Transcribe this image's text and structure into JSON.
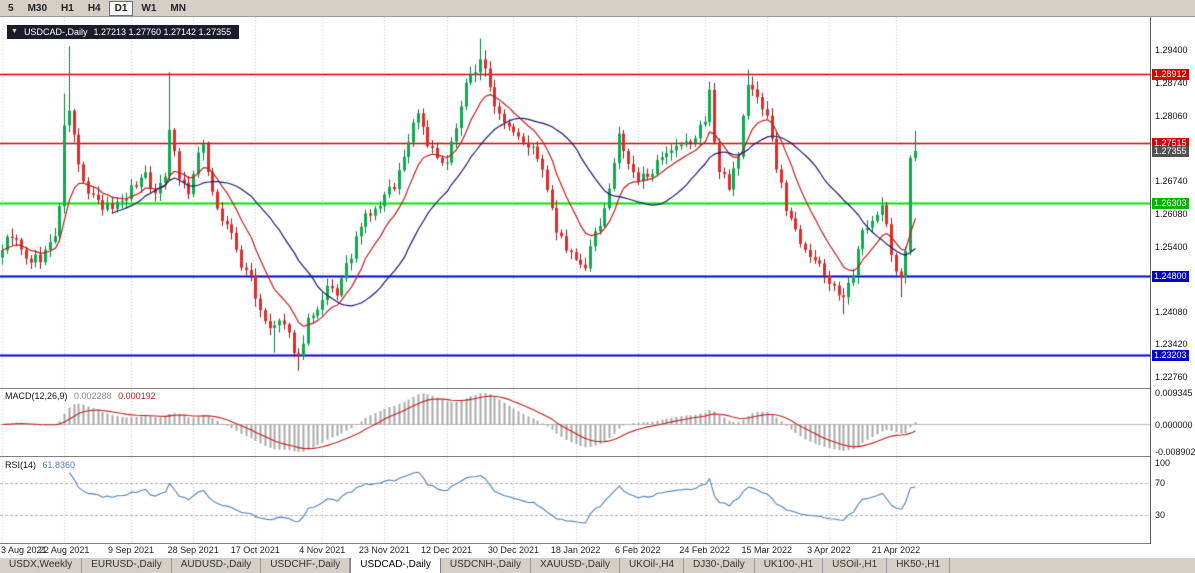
{
  "toolbar": {
    "timeframes": [
      "5",
      "M30",
      "H1",
      "H4",
      "D1",
      "W1",
      "MN"
    ],
    "active": "D1"
  },
  "chart_title": {
    "menu_icon": "▼",
    "symbol": "USDCAD-,Daily",
    "ohlc": "1.27213 1.27760 1.27142 1.27355"
  },
  "indicators": {
    "macd": {
      "name": "MACD(12,26,9)",
      "value1": "0.002288",
      "value2": "0.000192",
      "axis_ticks": [
        "0.009345",
        "0.000000",
        "-0.008902"
      ]
    },
    "rsi": {
      "name": "RSI(14)",
      "value": "61.8360",
      "axis_ticks": [
        "100",
        "70",
        "30"
      ],
      "levels": [
        70,
        30
      ]
    }
  },
  "colors": {
    "up_fill": "#0fa94f",
    "up_stroke": "#067f38",
    "down_fill": "#dd2c2c",
    "down_stroke": "#a01818",
    "ma_fast": "#c22020",
    "ma_slow": "#1b1b70",
    "grid": "#cccccc",
    "level_red": "#d40000",
    "level_green": "#00e000",
    "level_blue": "#0000d4",
    "label_red": "#d40000",
    "label_green": "#00b400",
    "label_blue": "#0000c8",
    "label_current": "#505050",
    "macd_bar": "#a8a8a8",
    "macd_signal": "#c02020",
    "macd_zero": "#bbbbbb",
    "rsi_line": "#4f81bd",
    "rsi_level": "#b4b4b4"
  },
  "chart_data": {
    "type": "candlestick",
    "symbol": "USDCAD",
    "timeframe": "Daily",
    "last_ohlc": {
      "open": 1.27213,
      "high": 1.2776,
      "low": 1.27142,
      "close": 1.27355
    },
    "current_price": 1.27355,
    "price_axis": {
      "min": 1.2253,
      "max": 1.3008,
      "ticks": [
        "1.29400",
        "1.28740",
        "1.28060",
        "1.26740",
        "1.26080",
        "1.25400",
        "1.24080",
        "1.23420",
        "1.22760"
      ]
    },
    "levels": [
      {
        "value": 1.28912,
        "color": "red"
      },
      {
        "value": 1.27515,
        "color": "red"
      },
      {
        "value": 1.26303,
        "color": "green"
      },
      {
        "value": 1.248,
        "color": "blue"
      },
      {
        "value": 1.23203,
        "color": "blue"
      }
    ],
    "num_candles": 192,
    "anchors": [
      [
        0,
        1.254
      ],
      [
        2,
        1.2566
      ],
      [
        5,
        1.2512
      ],
      [
        8,
        1.2517
      ],
      [
        11,
        1.256
      ],
      [
        12,
        1.2628
      ],
      [
        13,
        1.2778
      ],
      [
        14,
        1.2822
      ],
      [
        16,
        1.2705
      ],
      [
        18,
        1.2648
      ],
      [
        21,
        1.2617
      ],
      [
        24,
        1.2628
      ],
      [
        27,
        1.2657
      ],
      [
        30,
        1.2692
      ],
      [
        32,
        1.2642
      ],
      [
        34,
        1.269
      ],
      [
        35,
        1.2788
      ],
      [
        37,
        1.2682
      ],
      [
        39,
        1.2652
      ],
      [
        41,
        1.2722
      ],
      [
        42,
        1.2748
      ],
      [
        44,
        1.2652
      ],
      [
        46,
        1.2592
      ],
      [
        48,
        1.2567
      ],
      [
        50,
        1.2497
      ],
      [
        52,
        1.2482
      ],
      [
        54,
        1.2402
      ],
      [
        56,
        1.2372
      ],
      [
        58,
        1.2387
      ],
      [
        60,
        1.2357
      ],
      [
        62,
        1.2312
      ],
      [
        64,
        1.2392
      ],
      [
        66,
        1.2402
      ],
      [
        68,
        1.2452
      ],
      [
        70,
        1.2447
      ],
      [
        72,
        1.2497
      ],
      [
        74,
        1.2552
      ],
      [
        76,
        1.2602
      ],
      [
        78,
        1.2612
      ],
      [
        80,
        1.2642
      ],
      [
        82,
        1.2667
      ],
      [
        84,
        1.2722
      ],
      [
        86,
        1.2792
      ],
      [
        87,
        1.2817
      ],
      [
        89,
        1.2752
      ],
      [
        91,
        1.2717
      ],
      [
        93,
        1.2702
      ],
      [
        95,
        1.2792
      ],
      [
        97,
        1.2872
      ],
      [
        99,
        1.2902
      ],
      [
        100,
        1.2927
      ],
      [
        102,
        1.2862
      ],
      [
        104,
        1.2812
      ],
      [
        106,
        1.2792
      ],
      [
        108,
        1.2772
      ],
      [
        110,
        1.2747
      ],
      [
        112,
        1.2727
      ],
      [
        114,
        1.2652
      ],
      [
        116,
        1.2572
      ],
      [
        118,
        1.2532
      ],
      [
        120,
        1.2507
      ],
      [
        122,
        1.2502
      ],
      [
        124,
        1.2562
      ],
      [
        126,
        1.2622
      ],
      [
        128,
        1.2702
      ],
      [
        129,
        1.2772
      ],
      [
        131,
        1.2702
      ],
      [
        133,
        1.2672
      ],
      [
        135,
        1.2692
      ],
      [
        137,
        1.2707
      ],
      [
        139,
        1.2722
      ],
      [
        141,
        1.2737
      ],
      [
        143,
        1.2747
      ],
      [
        145,
        1.2762
      ],
      [
        147,
        1.2802
      ],
      [
        148,
        1.2862
      ],
      [
        149,
        1.2752
      ],
      [
        150,
        1.2692
      ],
      [
        152,
        1.2667
      ],
      [
        154,
        1.2732
      ],
      [
        155,
        1.2802
      ],
      [
        156,
        1.2872
      ],
      [
        158,
        1.2842
      ],
      [
        160,
        1.2812
      ],
      [
        162,
        1.2702
      ],
      [
        164,
        1.2622
      ],
      [
        166,
        1.2572
      ],
      [
        168,
        1.2542
      ],
      [
        170,
        1.2512
      ],
      [
        172,
        1.2482
      ],
      [
        174,
        1.2462
      ],
      [
        176,
        1.2432
      ],
      [
        178,
        1.2482
      ],
      [
        180,
        1.2572
      ],
      [
        182,
        1.2602
      ],
      [
        184,
        1.2622
      ],
      [
        185,
        1.2582
      ],
      [
        186,
        1.2522
      ],
      [
        187,
        1.2492
      ],
      [
        188,
        1.2478
      ],
      [
        189,
        1.2532
      ],
      [
        190,
        1.27213
      ],
      [
        191,
        1.27355
      ]
    ],
    "spikes": {
      "high": [
        [
          13,
          1.2852
        ],
        [
          14,
          1.2948
        ],
        [
          35,
          1.2896
        ],
        [
          100,
          1.2964
        ],
        [
          101,
          1.294
        ],
        [
          148,
          1.2877
        ],
        [
          156,
          1.2901
        ]
      ],
      "low": [
        [
          57,
          1.2325
        ],
        [
          62,
          1.2288
        ],
        [
          176,
          1.2403
        ],
        [
          188,
          1.2438
        ]
      ]
    },
    "x_labels": [
      {
        "label": "3 Aug 2021",
        "index": 0
      },
      {
        "label": "22 Aug 2021",
        "index": 13
      },
      {
        "label": "9 Sep 2021",
        "index": 27
      },
      {
        "label": "28 Sep 2021",
        "index": 40
      },
      {
        "label": "17 Oct 2021",
        "index": 53
      },
      {
        "label": "4 Nov 2021",
        "index": 67
      },
      {
        "label": "23 Nov 2021",
        "index": 80
      },
      {
        "label": "12 Dec 2021",
        "index": 93
      },
      {
        "label": "30 Dec 2021",
        "index": 107
      },
      {
        "label": "18 Jan 2022",
        "index": 120
      },
      {
        "label": "6 Feb 2022",
        "index": 133
      },
      {
        "label": "24 Feb 2022",
        "index": 147
      },
      {
        "label": "15 Mar 2022",
        "index": 160
      },
      {
        "label": "3 Apr 2022",
        "index": 173
      },
      {
        "label": "21 Apr 2022",
        "index": 187
      }
    ],
    "moving_averages": [
      {
        "type": "ema",
        "period": 10,
        "color_key": "ma_fast"
      },
      {
        "type": "sma",
        "period": 24,
        "color_key": "ma_slow"
      }
    ]
  },
  "tabs": {
    "items": [
      "USDX,Weekly",
      "EURUSD-,Daily",
      "AUDUSD-,Daily",
      "USDCHF-,Daily",
      "USDCAD-,Daily",
      "USDCNH-,Daily",
      "XAUUSD-,Daily",
      "UKOil-,H4",
      "DJ30-,Daily",
      "UK100-,H1",
      "USOil-,H1",
      "HK50-,H1"
    ],
    "active": "USDCAD-,Daily"
  }
}
